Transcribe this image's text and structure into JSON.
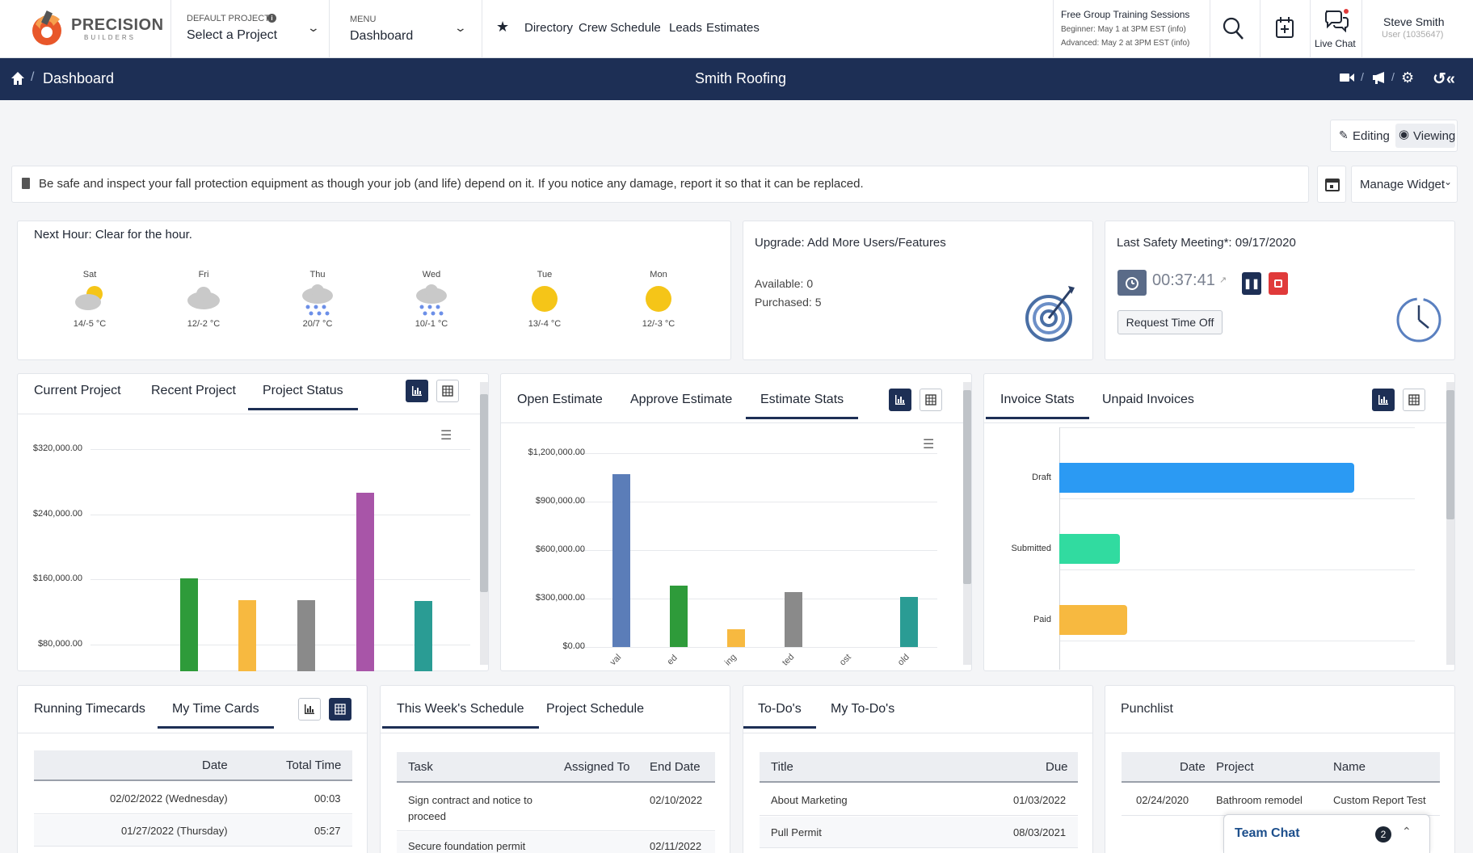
{
  "header": {
    "logo_name": "PRECISION",
    "logo_sub": "BUILDERS",
    "default_project_label": "DEFAULT PROJECT",
    "default_project_value": "Select a Project",
    "menu_label": "MENU",
    "menu_value": "Dashboard",
    "links": [
      "Directory",
      "Crew Schedule",
      "Leads",
      "Estimates"
    ],
    "training_title": "Free Group Training Sessions",
    "training_beginner": "Beginner:  May 1 at 3PM EST (info)",
    "training_advanced": "Advanced:  May 2 at 3PM EST (info)",
    "live_chat": "Live Chat",
    "user_name": "Steve Smith",
    "user_id": "User (1035647)"
  },
  "nav": {
    "breadcrumb": "Dashboard",
    "company": "Smith Roofing"
  },
  "toolbar": {
    "editing": "Editing",
    "viewing": "Viewing",
    "manage_widget": "Manage Widget"
  },
  "notice": "Be safe and inspect your fall protection equipment as though your job (and life) depend on it. If you notice any damage, report it so that it can be replaced.",
  "weather": {
    "next_hour": "Next Hour: Clear for the hour.",
    "days": [
      {
        "day": "Sat",
        "temp": "14/-5 °C",
        "icon": "partly-cloudy-icon"
      },
      {
        "day": "Fri",
        "temp": "12/-2 °C",
        "icon": "cloud-icon"
      },
      {
        "day": "Thu",
        "temp": "20/7 °C",
        "icon": "rain-icon"
      },
      {
        "day": "Wed",
        "temp": "10/-1 °C",
        "icon": "rain-icon"
      },
      {
        "day": "Tue",
        "temp": "13/-4 °C",
        "icon": "sun-icon"
      },
      {
        "day": "Mon",
        "temp": "12/-3 °C",
        "icon": "sun-icon"
      }
    ]
  },
  "upgrade": {
    "title": "Upgrade: Add More Users/Features",
    "available": "Available: 0",
    "purchased": "Purchased: 5"
  },
  "safety": {
    "title": "Last Safety Meeting*: 09/17/2020",
    "timer": "00:37:41",
    "request_btn": "Request Time Off"
  },
  "project_widget": {
    "tabs": [
      "Current Project",
      "Recent Project",
      "Project Status"
    ]
  },
  "estimate_widget": {
    "tabs": [
      "Open Estimate",
      "Approve Estimate",
      "Estimate Stats"
    ]
  },
  "invoice_widget": {
    "tabs": [
      "Invoice Stats",
      "Unpaid Invoices"
    ]
  },
  "chart_data": [
    {
      "type": "bar",
      "yticks": [
        "$320,000.00",
        "$240,000.00",
        "$160,000.00",
        "$80,000.00"
      ],
      "ylim": [
        50000,
        330000
      ],
      "series": [
        {
          "values": [
            161000,
            134000,
            134000,
            266000,
            133000
          ]
        }
      ],
      "colors": [
        "#2e9b3a",
        "#f7b940",
        "#8a8a8a",
        "#a855a8",
        "#2a9c94"
      ]
    },
    {
      "type": "bar",
      "yticks": [
        "$1,200,000.00",
        "$900,000.00",
        "$600,000.00",
        "$300,000.00",
        "$0.00"
      ],
      "ylim": [
        0,
        1200000
      ],
      "x_tick_labels": [
        "val",
        "ed",
        "ing",
        "ted",
        "ost",
        "old"
      ],
      "series": [
        {
          "values": [
            1070000,
            380000,
            110000,
            340000,
            0,
            310000
          ]
        }
      ],
      "colors": [
        "#5b7db8",
        "#2e9b3a",
        "#f7b940",
        "#8a8a8a",
        "#8a8a8a",
        "#2a9c94"
      ]
    },
    {
      "type": "bar",
      "orientation": "horizontal",
      "categories": [
        "Draft",
        "Submitted",
        "Paid"
      ],
      "series": [
        {
          "values": [
            100,
            20.5,
            23
          ]
        }
      ],
      "colors": [
        "#2b9af3",
        "#31dba0",
        "#f7b940"
      ]
    }
  ],
  "timecards": {
    "tabs": [
      "Running Timecards",
      "My Time Cards"
    ],
    "headers": [
      "Date",
      "Total Time"
    ],
    "rows": [
      [
        "02/02/2022 (Wednesday)",
        "00:03"
      ],
      [
        "01/27/2022 (Thursday)",
        "05:27"
      ]
    ]
  },
  "schedule": {
    "tabs": [
      "This Week's Schedule",
      "Project Schedule"
    ],
    "headers": [
      "Task",
      "Assigned To",
      "End Date"
    ],
    "rows": [
      [
        "Sign contract and notice to proceed",
        "",
        "02/10/2022"
      ],
      [
        "Secure foundation permit",
        "",
        "02/11/2022"
      ]
    ]
  },
  "todos": {
    "tabs": [
      "To-Do's",
      "My To-Do's"
    ],
    "headers": [
      "Title",
      "Due"
    ],
    "rows": [
      [
        "About Marketing",
        "01/03/2022"
      ],
      [
        "Pull Permit",
        "08/03/2021"
      ]
    ]
  },
  "punchlist": {
    "title": "Punchlist",
    "headers": [
      "Date",
      "Project",
      "Name"
    ],
    "rows": [
      [
        "02/24/2020",
        "Bathroom remodel",
        "Custom Report Test"
      ]
    ]
  },
  "team_chat": {
    "label": "Team Chat",
    "count": "2"
  }
}
